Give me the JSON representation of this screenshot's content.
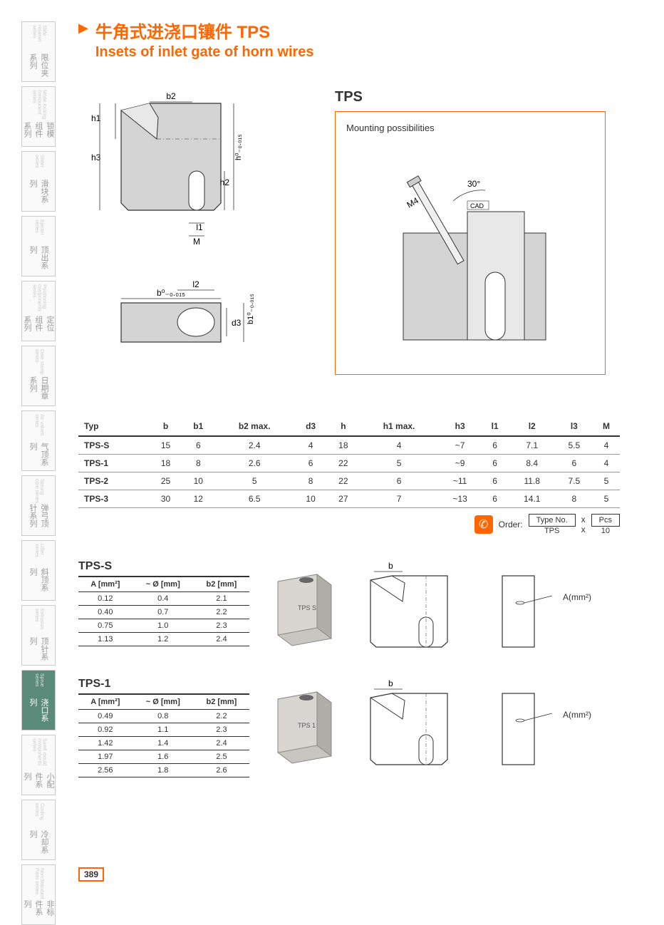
{
  "sidebar": [
    {
      "cn": "限位夹系列",
      "en": "Slide retainer series",
      "active": false
    },
    {
      "cn": "锁模组件系列",
      "en": "Mode locking component series",
      "active": false
    },
    {
      "cn": "滑块系列",
      "en": "Slider series",
      "active": false
    },
    {
      "cn": "顶出系列",
      "en": "Ejector series",
      "active": false
    },
    {
      "cn": "定位组件系列",
      "en": "Positioning components series",
      "active": false
    },
    {
      "cn": "日期章系列",
      "en": "Date stamp series",
      "active": false
    },
    {
      "cn": "气顶系列",
      "en": "Air valves series",
      "active": false
    },
    {
      "cn": "弹弓顶针系列",
      "en": "Sprung core series",
      "active": false
    },
    {
      "cn": "斜顶系列",
      "en": "Lifter series",
      "active": false
    },
    {
      "cn": "顶针系列",
      "en": "Extrusion series",
      "active": false
    },
    {
      "cn": "浇口系列",
      "en": "Sprue series",
      "active": true
    },
    {
      "cn": "小配件系列",
      "en": "Samll mould components series",
      "active": false
    },
    {
      "cn": "冷却系列",
      "en": "Cooling series",
      "active": false
    },
    {
      "cn": "非标件系列",
      "en": "Non-Standard Parts series",
      "active": false
    }
  ],
  "header": {
    "title_cn": "牛角式进浇口镶件 TPS",
    "title_en": "Insets of inlet gate of horn wires"
  },
  "diagram_labels": {
    "b2": "b2",
    "h1": "h1",
    "h3": "h3",
    "h_tol": "h⁰₋₀.₀₁₅",
    "h2": "h2",
    "l1": "l1",
    "M": "M",
    "b_tol": "b⁰₋₀.₀₁₅",
    "l2": "l2",
    "d3": "d3",
    "b1_tol": "b1⁰₋₀.₀₁₅",
    "tps": "TPS",
    "mounting": "Mounting possibilities",
    "angle": "30°",
    "m4": "M4",
    "cad": "CAD",
    "b": "b",
    "amm": "A(mm²)"
  },
  "spec_table": {
    "headers": [
      "Typ",
      "b",
      "b1",
      "b2 max.",
      "d3",
      "h",
      "h1 max.",
      "h3",
      "l1",
      "l2",
      "l3",
      "M"
    ],
    "rows": [
      [
        "TPS-S",
        "15",
        "6",
        "2.4",
        "4",
        "18",
        "4",
        "~7",
        "6",
        "7.1",
        "5.5",
        "4"
      ],
      [
        "TPS-1",
        "18",
        "8",
        "2.6",
        "6",
        "22",
        "5",
        "~9",
        "6",
        "8.4",
        "6",
        "4"
      ],
      [
        "TPS-2",
        "25",
        "10",
        "5",
        "8",
        "22",
        "6",
        "~11",
        "6",
        "11.8",
        "7.5",
        "5"
      ],
      [
        "TPS-3",
        "30",
        "12",
        "6.5",
        "10",
        "27",
        "7",
        "~13",
        "6",
        "14.1",
        "8",
        "5"
      ]
    ]
  },
  "order": {
    "label": "Order:",
    "type_label": "Type No.",
    "pcs_label": "Pcs",
    "type_value": "TPS",
    "x": "x",
    "pcs_value": "10"
  },
  "sub_tables": [
    {
      "title": "TPS-S",
      "headers": [
        "A [mm²]",
        "~ Ø [mm]",
        "b2 [mm]"
      ],
      "rows": [
        [
          "0.12",
          "0.4",
          "2.1"
        ],
        [
          "0.40",
          "0.7",
          "2.2"
        ],
        [
          "0.75",
          "1.0",
          "2.3"
        ],
        [
          "1.13",
          "1.2",
          "2.4"
        ]
      ]
    },
    {
      "title": "TPS-1",
      "headers": [
        "A [mm²]",
        "~ Ø [mm]",
        "b2 [mm]"
      ],
      "rows": [
        [
          "0.49",
          "0.8",
          "2.2"
        ],
        [
          "0.92",
          "1.1",
          "2.3"
        ],
        [
          "1.42",
          "1.4",
          "2.4"
        ],
        [
          "1.97",
          "1.6",
          "2.5"
        ],
        [
          "2.56",
          "1.8",
          "2.6"
        ]
      ]
    }
  ],
  "page_number": "389",
  "colors": {
    "accent": "#ff6600",
    "sidebar_active": "#5a8a7a",
    "fill_gray": "#d4d4d4",
    "fill_light": "#e8e8e8"
  }
}
